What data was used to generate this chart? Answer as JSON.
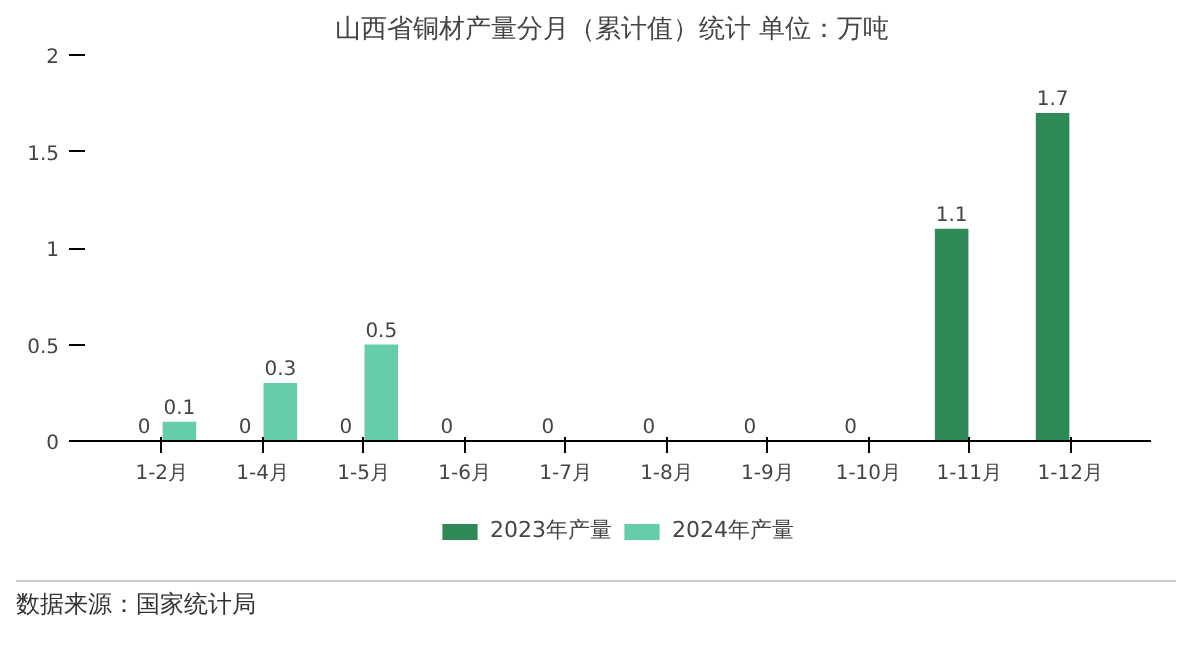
{
  "chart_data": {
    "type": "bar",
    "title": "山西省铜材产量分月（累计值）统计  单位：万吨",
    "categories": [
      "1-2月",
      "1-4月",
      "1-5月",
      "1-6月",
      "1-7月",
      "1-8月",
      "1-9月",
      "1-10月",
      "1-11月",
      "1-12月"
    ],
    "series": [
      {
        "name": "2023年产量",
        "color": "#2e8b57",
        "values": [
          0,
          0,
          0,
          0,
          0,
          0,
          0,
          0,
          1.1,
          1.7
        ]
      },
      {
        "name": "2024年产量",
        "color": "#66cdaa",
        "values": [
          0.1,
          0.3,
          0.5,
          null,
          null,
          null,
          null,
          null,
          null,
          null
        ]
      }
    ],
    "ylim": [
      0,
      2
    ],
    "yticks": [
      0,
      0.5,
      1,
      1.5,
      2
    ],
    "grid": false,
    "legend": "bottom",
    "data_labels": true,
    "annotations": [
      "数据来源：国家统计局"
    ]
  }
}
